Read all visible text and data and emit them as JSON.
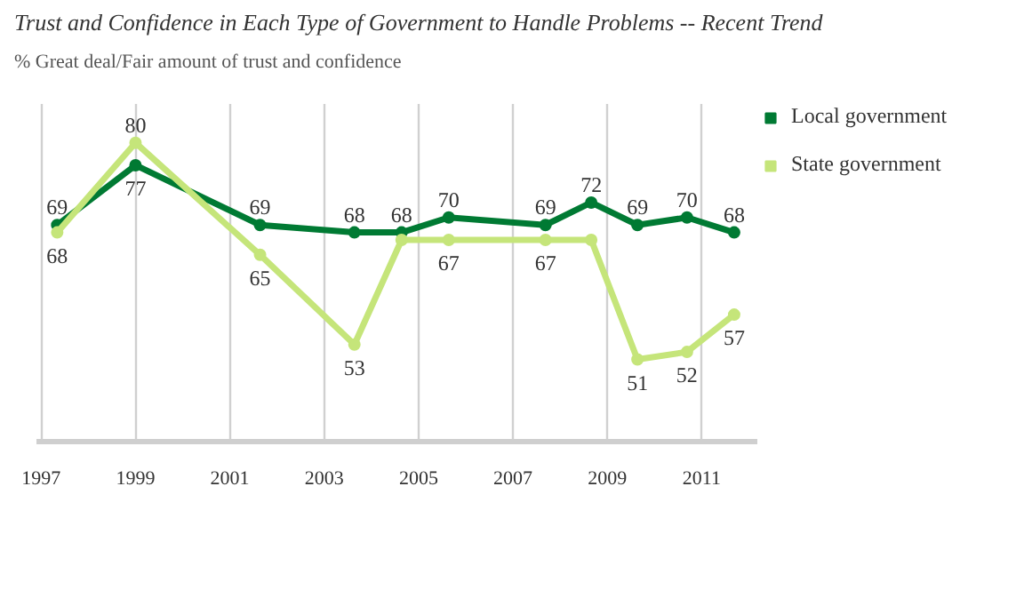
{
  "chart_data": {
    "type": "line",
    "title": "Trust and Confidence in Each Type of Government to Handle Problems -- Recent Trend",
    "subtitle": "% Great deal/Fair amount of trust and confidence",
    "x": [
      1997.34,
      1999.0,
      2001.64,
      2003.64,
      2004.64,
      2005.64,
      2007.69,
      2008.66,
      2009.64,
      2010.69,
      2011.69
    ],
    "series": [
      {
        "name": "Local government",
        "color": "#007a33",
        "values": [
          69,
          77,
          69,
          68,
          68,
          70,
          69,
          72,
          69,
          70,
          68
        ],
        "value_labels": [
          "69",
          "77",
          "69",
          "68",
          "68",
          "70",
          "69",
          "72",
          "69",
          "70",
          "68"
        ]
      },
      {
        "name": "State government",
        "color": "#c5e57a",
        "values": [
          68,
          80,
          65,
          53,
          67,
          67,
          67,
          67,
          51,
          52,
          57
        ],
        "value_labels": [
          "68",
          "80",
          "65",
          "53",
          null,
          "67",
          "67",
          null,
          "51",
          "52",
          "57"
        ]
      }
    ],
    "xlim": [
      1996.9,
      2012.2
    ],
    "ylim": [
      40,
      85.2
    ],
    "xticks": [
      1997,
      1999,
      2001,
      2003,
      2005,
      2007,
      2009,
      2011
    ],
    "grid": "x",
    "legend": "top right",
    "marker": "circle",
    "line_style": "solid",
    "tick_labels": "x"
  }
}
